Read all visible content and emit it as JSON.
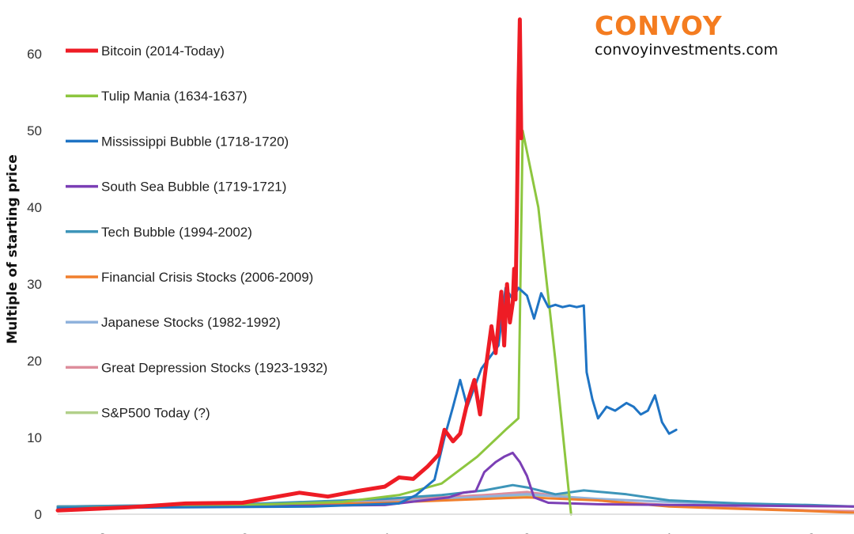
{
  "brand": {
    "name": "CONVOY",
    "url": "convoyinvestments.com",
    "color": "#f47c20"
  },
  "chart_data": {
    "type": "line",
    "title": "",
    "xlabel": "",
    "ylabel": "Multiple of starting price",
    "ylim": [
      0,
      66
    ],
    "xlim": [
      -3.3,
      2.3
    ],
    "yticks": [
      0,
      10,
      20,
      30,
      40,
      50,
      60
    ],
    "grid": false,
    "legend_position": "top-left",
    "series": [
      {
        "name": "Bitcoin (2014-Today)",
        "color": "#ee1c25",
        "width": 5,
        "x": [
          -3.3,
          -2.8,
          -2.4,
          -2.0,
          -1.6,
          -1.4,
          -1.2,
          -1.0,
          -0.9,
          -0.8,
          -0.7,
          -0.62,
          -0.58,
          -0.52,
          -0.47,
          -0.42,
          -0.37,
          -0.33,
          -0.29,
          -0.25,
          -0.22,
          -0.18,
          -0.16,
          -0.14,
          -0.12,
          -0.1,
          -0.09,
          -0.08,
          -0.07,
          -0.06,
          -0.05,
          -0.04
        ],
        "values": [
          0.5,
          0.9,
          1.4,
          1.5,
          2.8,
          2.3,
          3.0,
          3.6,
          4.8,
          4.6,
          6.2,
          7.8,
          11.0,
          9.5,
          10.5,
          14.5,
          17.5,
          13.0,
          19.0,
          24.5,
          21.0,
          29.0,
          22.0,
          30.0,
          25.0,
          27.5,
          32.0,
          28.0,
          40.0,
          55.0,
          64.5,
          49.0
        ]
      },
      {
        "name": "Tulip Mania (1634-1637)",
        "color": "#8dc63f",
        "width": 3,
        "x": [
          -3.3,
          -2.5,
          -1.8,
          -1.3,
          -0.9,
          -0.6,
          -0.35,
          -0.15,
          -0.06,
          -0.03,
          0.08,
          0.2,
          0.31
        ],
        "values": [
          0.8,
          1.0,
          1.3,
          1.6,
          2.5,
          4.0,
          7.5,
          11.0,
          12.5,
          50.0,
          40.0,
          20.0,
          0.0
        ]
      },
      {
        "name": "Mississippi Bubble (1718-1720)",
        "color": "#1f74c4",
        "width": 3,
        "x": [
          -3.3,
          -1.5,
          -0.9,
          -0.78,
          -0.65,
          -0.58,
          -0.52,
          -0.47,
          -0.42,
          -0.37,
          -0.32,
          -0.26,
          -0.2,
          -0.15,
          -0.1,
          -0.06,
          0.0,
          0.05,
          0.1,
          0.15,
          0.2,
          0.25,
          0.3,
          0.35,
          0.4,
          0.42,
          0.46,
          0.5,
          0.56,
          0.62,
          0.7,
          0.75,
          0.8,
          0.85,
          0.9,
          0.95,
          1.0,
          1.05
        ],
        "values": [
          0.8,
          1.0,
          1.4,
          2.5,
          4.5,
          10.0,
          14.0,
          17.5,
          14.0,
          16.5,
          19.0,
          20.5,
          22.0,
          29.5,
          28.0,
          29.5,
          28.5,
          25.5,
          28.8,
          27.0,
          27.3,
          27.0,
          27.2,
          27.0,
          27.2,
          18.5,
          15.0,
          12.5,
          14.0,
          13.5,
          14.5,
          14.0,
          13.0,
          13.5,
          15.5,
          12.0,
          10.5,
          11.0
        ]
      },
      {
        "name": "South Sea Bubble (1719-1721)",
        "color": "#7b3fb5",
        "width": 3,
        "x": [
          -3.3,
          -1.0,
          -0.55,
          -0.45,
          -0.36,
          -0.3,
          -0.22,
          -0.16,
          -0.1,
          -0.05,
          0.0,
          0.05,
          0.15,
          0.5,
          2.3
        ],
        "values": [
          0.8,
          1.2,
          2.2,
          2.8,
          3.0,
          5.5,
          6.8,
          7.5,
          8.0,
          6.8,
          5.0,
          2.2,
          1.5,
          1.3,
          1.0
        ]
      },
      {
        "name": "Tech Bubble (1994-2002)",
        "color": "#3d95b9",
        "width": 3,
        "x": [
          -3.3,
          -2.0,
          -1.0,
          -0.6,
          -0.3,
          -0.1,
          0.0,
          0.2,
          0.4,
          0.7,
          1.0,
          1.5,
          2.0,
          2.3
        ],
        "values": [
          1.0,
          1.3,
          2.0,
          2.5,
          3.1,
          3.8,
          3.5,
          2.6,
          3.1,
          2.6,
          1.8,
          1.4,
          1.2,
          1.0
        ]
      },
      {
        "name": "Financial Crisis Stocks (2006-2009)",
        "color": "#f07f2d",
        "width": 3,
        "x": [
          -3.3,
          -2.0,
          -1.0,
          -0.3,
          0.0,
          0.5,
          1.0,
          1.5,
          2.0,
          2.3
        ],
        "values": [
          1.0,
          1.1,
          1.5,
          2.0,
          2.2,
          1.8,
          1.0,
          0.7,
          0.4,
          0.2
        ]
      },
      {
        "name": "Japanese Stocks (1982-1992)",
        "color": "#8fb2dc",
        "width": 3,
        "x": [
          -3.3,
          -2.0,
          -1.0,
          -0.4,
          0.0,
          0.5,
          1.0,
          1.5,
          2.0,
          2.3
        ],
        "values": [
          1.0,
          1.2,
          1.6,
          2.2,
          2.6,
          2.0,
          1.6,
          1.3,
          1.1,
          1.0
        ]
      },
      {
        "name": "Great Depression Stocks (1923-1932)",
        "color": "#dd8d9c",
        "width": 3,
        "x": [
          -3.3,
          -2.0,
          -1.0,
          -0.3,
          0.0,
          0.3,
          0.6,
          1.0,
          1.5,
          2.0,
          2.3
        ],
        "values": [
          1.0,
          1.3,
          1.8,
          2.5,
          2.9,
          2.2,
          1.6,
          1.2,
          0.8,
          0.5,
          0.4
        ]
      },
      {
        "name": "S&P500 Today (?)",
        "color": "#b2d08a",
        "width": 3,
        "x": [
          -3.3,
          -2.0,
          -1.0,
          -0.4,
          0.0,
          0.3
        ],
        "values": [
          1.0,
          1.2,
          1.6,
          2.1,
          2.4,
          2.5
        ]
      }
    ]
  }
}
